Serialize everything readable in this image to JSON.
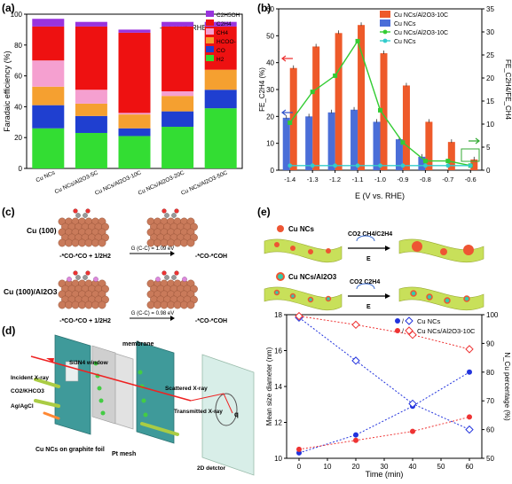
{
  "panel_labels": {
    "a": "(a)",
    "b": "(b)",
    "c": "(c)",
    "d": "(d)",
    "e": "(e)"
  },
  "chart_data": [
    {
      "id": "a",
      "type": "bar",
      "stacked": true,
      "annotation": "-1.1 V vs. RHE",
      "ylabel": "Faradaic efficiency (%)",
      "ylim": [
        0,
        100
      ],
      "yticks": [
        0,
        20,
        40,
        60,
        80,
        100
      ],
      "categories": [
        "Cu NCs",
        "Cu NCs/Al2O3-5C",
        "Cu NCs/Al2O3-10C",
        "Cu NCs/Al2O3-20C",
        "Cu NCs/Al2O3-50C"
      ],
      "legend_position": "top-right",
      "series": [
        {
          "name": "H2",
          "color": "#33dd33",
          "values": [
            26,
            23,
            21,
            27,
            39
          ]
        },
        {
          "name": "CO",
          "color": "#1f3fd0",
          "values": [
            15,
            11,
            5,
            10,
            12
          ]
        },
        {
          "name": "HCOO-",
          "color": "#f5a030",
          "values": [
            12,
            8,
            9,
            10,
            13
          ]
        },
        {
          "name": "CH4",
          "color": "#f5a0d0",
          "values": [
            17,
            9,
            1,
            3,
            0
          ]
        },
        {
          "name": "C2H4",
          "color": "#ee1111",
          "values": [
            22,
            41,
            52,
            42,
            28
          ]
        },
        {
          "name": "C2H5OH",
          "color": "#9933dd",
          "values": [
            5,
            3,
            2,
            3,
            3
          ]
        }
      ]
    },
    {
      "id": "b",
      "type": "bar",
      "xlabel": "E (V vs. RHE)",
      "ylabel": "FE_C2H4 (%)",
      "ylabel_right": "FE_C2H4/FE_CH4",
      "categories": [
        "-1.4",
        "-1.3",
        "-1.2",
        "-1.1",
        "-1.0",
        "-0.9",
        "-0.8",
        "-0.7",
        "-0.6"
      ],
      "ylim": [
        0,
        60
      ],
      "yticks": [
        0,
        10,
        20,
        30,
        40,
        50,
        60
      ],
      "ylim_right": [
        0,
        35
      ],
      "yticks_right": [
        0,
        5,
        10,
        15,
        20,
        25,
        30,
        35
      ],
      "legend_position": "top-right",
      "series": [
        {
          "name": "Cu NCs/Al2O3-10C",
          "kind": "bar",
          "color": "#ee5a2a",
          "values": [
            38,
            46,
            51,
            54,
            43.5,
            31.5,
            18,
            10.5,
            4
          ]
        },
        {
          "name": "Cu NCs",
          "kind": "bar",
          "color": "#4a6ed8",
          "values": [
            19.5,
            20,
            21.5,
            22.5,
            18,
            11.5,
            5,
            0,
            0
          ]
        },
        {
          "name": "Cu NCs/Al2O3-10C",
          "kind": "line",
          "axis": "right",
          "color": "#33cc33",
          "values": [
            10.3,
            17,
            20.5,
            28,
            13,
            6,
            2,
            2,
            1
          ]
        },
        {
          "name": "Cu NCs",
          "kind": "line",
          "axis": "right",
          "color": "#33cccc",
          "values": [
            1,
            1,
            1,
            1,
            1,
            1,
            1,
            1,
            1
          ]
        }
      ]
    },
    {
      "id": "e",
      "type": "line",
      "xlabel": "Time (min)",
      "ylabel": "Mean size diameter (nm)",
      "ylabel_right": "N_Cu percentage (%)",
      "x": [
        0,
        20,
        40,
        60
      ],
      "xticks": [
        0,
        10,
        20,
        30,
        40,
        50,
        60
      ],
      "ylim": [
        10,
        18
      ],
      "yticks": [
        10,
        12,
        14,
        16,
        18
      ],
      "ylim_right": [
        50,
        100
      ],
      "yticks_right": [
        50,
        60,
        70,
        80,
        90,
        100
      ],
      "legend_position": "top-right",
      "series": [
        {
          "name": "Cu NCs",
          "marker": "filled-circle",
          "color": "#2233dd",
          "axis": "left",
          "values": [
            10.3,
            11.3,
            12.9,
            14.8
          ]
        },
        {
          "name": "Cu NCs",
          "marker": "open-diamond",
          "color": "#2233dd",
          "axis": "right",
          "values": [
            99,
            84,
            69,
            60
          ]
        },
        {
          "name": "Cu NCs/Al2O3-10C",
          "marker": "filled-circle",
          "color": "#ee3333",
          "axis": "left",
          "values": [
            10.5,
            11.0,
            11.5,
            12.3
          ]
        },
        {
          "name": "Cu NCs/Al2O3-10C",
          "marker": "open-diamond",
          "color": "#ee3333",
          "axis": "right",
          "values": [
            99.5,
            96.5,
            93,
            88
          ]
        }
      ]
    }
  ],
  "panel_c": {
    "surface_1": "Cu (100)",
    "surface_2": "Cu (100)/Al2O3",
    "energy_1": "G (C-C) = 1.09 eV",
    "energy_2": "G (C-C) = 0.98 eV",
    "reaction_left": "-*CO-*CO + 1/2H2",
    "reaction_right": "-*CO-*COH"
  },
  "panel_d": {
    "window": "Si3N4 window",
    "membrane": "membrane",
    "incident": "Incident X-ray",
    "electrolyte": "CO2/KHCO3",
    "reference": "Ag/AgCl",
    "scattered": "Scattered X-ray",
    "transmitted": "Transmitted X-ray",
    "q": "q",
    "sample": "Cu NCs on graphite foil",
    "mesh": "Pt mesh",
    "detector": "2D detctor"
  },
  "panel_e_scheme": {
    "row1_label": "Cu NCs",
    "row1_products": "CO2  CH4/C2H4",
    "row2_label": "Cu NCs/Al2O3",
    "row2_products": "CO2  C2H4",
    "arrow_label": "E"
  }
}
